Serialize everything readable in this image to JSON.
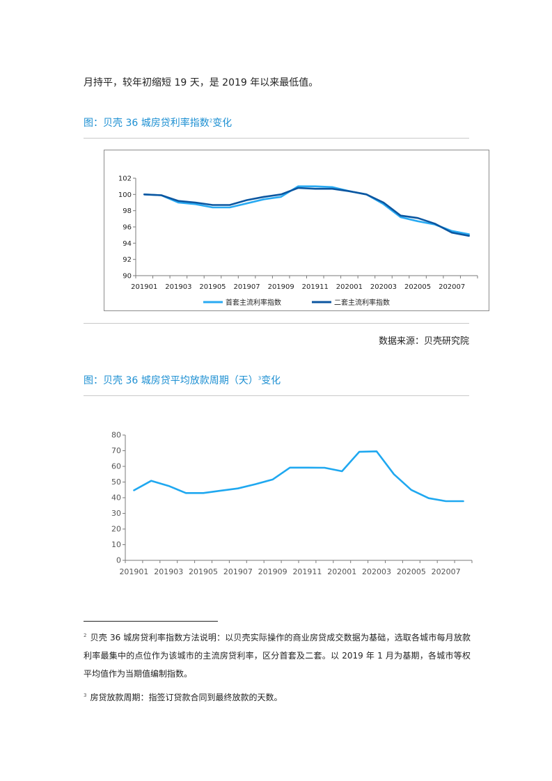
{
  "intro_text": "月持平，较年初缩短 19 天，是 2019 年以来最低值。",
  "figure1": {
    "title": "图：贝壳 36 城房贷利率指数",
    "title_sup": "2",
    "title_suffix": "变化",
    "source": "数据来源：贝壳研究院",
    "colors": {
      "first_home": "#29aaf2",
      "second_home": "#0b56a0"
    }
  },
  "figure2": {
    "title": "图：贝壳 36 城房贷平均放款周期（天）",
    "title_sup": "3",
    "title_suffix": "变化",
    "colors": {
      "line": "#1fa8f0"
    }
  },
  "chart_data": [
    {
      "type": "line",
      "x": [
        "201901",
        "201902",
        "201903",
        "201904",
        "201905",
        "201906",
        "201907",
        "201908",
        "201909",
        "201910",
        "201911",
        "201912",
        "202001",
        "202002",
        "202003",
        "202004",
        "202005",
        "202006",
        "202007",
        "202008"
      ],
      "x_tick_labels": [
        "201901",
        "201903",
        "201905",
        "201907",
        "201909",
        "201911",
        "202001",
        "202003",
        "202005",
        "202007"
      ],
      "series": [
        {
          "name": "首套主流利率指数",
          "values": [
            100.0,
            99.9,
            99.0,
            98.8,
            98.4,
            98.4,
            98.9,
            99.4,
            99.7,
            101.0,
            101.0,
            100.9,
            100.4,
            100.0,
            98.8,
            97.2,
            96.7,
            96.3,
            95.5,
            95.1
          ]
        },
        {
          "name": "二套主流利率指数",
          "values": [
            100.0,
            99.9,
            99.2,
            99.0,
            98.7,
            98.7,
            99.3,
            99.7,
            100.0,
            100.8,
            100.7,
            100.7,
            100.4,
            100.0,
            99.0,
            97.4,
            97.1,
            96.4,
            95.3,
            94.9
          ]
        }
      ],
      "y_ticks": [
        "90",
        "92",
        "94",
        "96",
        "98",
        "100",
        "102"
      ],
      "ylim": [
        90,
        102
      ],
      "legend": "bottom"
    },
    {
      "type": "line",
      "x": [
        "201901",
        "201902",
        "201903",
        "201904",
        "201905",
        "201906",
        "201907",
        "201908",
        "201909",
        "201910",
        "201911",
        "201912",
        "202001",
        "202002",
        "202003",
        "202004",
        "202005",
        "202006",
        "202007",
        "202008"
      ],
      "x_tick_labels": [
        "201901",
        "201903",
        "201905",
        "201907",
        "201909",
        "201911",
        "202001",
        "202003",
        "202005",
        "202007"
      ],
      "series": [
        {
          "values": [
            44.7,
            50.8,
            47.5,
            43.0,
            43.0,
            44.5,
            45.9,
            48.6,
            51.6,
            59.2,
            59.2,
            59.1,
            56.9,
            69.3,
            69.6,
            55.0,
            45.0,
            39.7,
            37.8,
            37.8
          ]
        }
      ],
      "y_ticks": [
        "0",
        "10",
        "20",
        "30",
        "40",
        "50",
        "60",
        "70",
        "80"
      ],
      "ylim": [
        0,
        80
      ]
    }
  ],
  "footnotes": [
    {
      "num": "2",
      "text": "贝壳 36 城房贷利率指数方法说明：以贝壳实际操作的商业房贷成交数据为基础，选取各城市每月放款利率最集中的点位作为该城市的主流房贷利率，区分首套及二套。以 2019 年 1 月为基期，各城市等权平均值作为当期值编制指数。"
    },
    {
      "num": "3",
      "text": "房贷放款周期：指签订贷款合同到最终放款的天数。"
    }
  ]
}
